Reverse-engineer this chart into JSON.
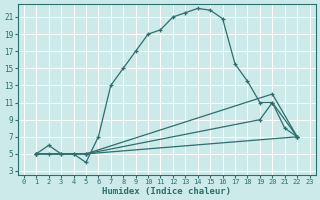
{
  "xlabel": "Humidex (Indice chaleur)",
  "bg_color": "#cceaea",
  "grid_color": "#ffffff",
  "line_color": "#2d6e6e",
  "xlim": [
    -0.5,
    23.5
  ],
  "ylim": [
    2.5,
    22.5
  ],
  "xticks": [
    0,
    1,
    2,
    3,
    4,
    5,
    6,
    7,
    8,
    9,
    10,
    11,
    12,
    13,
    14,
    15,
    16,
    17,
    18,
    19,
    20,
    21,
    22,
    23
  ],
  "yticks": [
    3,
    5,
    7,
    9,
    11,
    13,
    15,
    17,
    19,
    21
  ],
  "line1_x": [
    1,
    2,
    3,
    4,
    5,
    6,
    7,
    8,
    9,
    10,
    11,
    12,
    13,
    14,
    15,
    16,
    17,
    18,
    19,
    20,
    21,
    22
  ],
  "line1_y": [
    5,
    5,
    5,
    5,
    4,
    7,
    13,
    15,
    17,
    19,
    19.5,
    21,
    21.5,
    22,
    21.8,
    20.8,
    15.5,
    13.5,
    11,
    11,
    8,
    7
  ],
  "line2_x": [
    1,
    2,
    3,
    4,
    5,
    22
  ],
  "line2_y": [
    5,
    6,
    5,
    5,
    5,
    7
  ],
  "line3_x": [
    1,
    5,
    20,
    22
  ],
  "line3_y": [
    5,
    5,
    12,
    7
  ],
  "line4_x": [
    1,
    5,
    19,
    20,
    22
  ],
  "line4_y": [
    5,
    5,
    9,
    11,
    7
  ]
}
